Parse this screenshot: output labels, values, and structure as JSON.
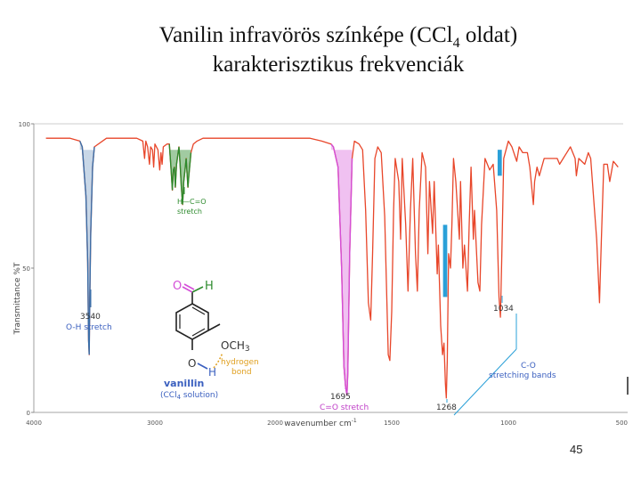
{
  "slide": {
    "title_line1_pre": "Vanilin infravörös színképe (CCl",
    "title_line1_sub": "4",
    "title_line1_post": " oldat)",
    "title_line2": "karakterisztikus frekvenciák",
    "page_number": "45"
  },
  "colors": {
    "spectrum": "#e8462a",
    "oh_band": "#3a6ea8",
    "ch_band": "#2e8b2e",
    "co_band": "#d44ed8",
    "c_o_band": "#2aa0d8",
    "hbond": "#e0a020",
    "label_blue": "#3a5fbf",
    "axis": "#888888"
  },
  "chart_data": {
    "type": "line",
    "xlabel": "wavenumber cm",
    "xlabel_sup": "-1",
    "ylabel": "Transmittance %T",
    "xlim": [
      4000,
      500
    ],
    "ylim": [
      0,
      100
    ],
    "x_ticks": [
      "4000",
      "3000",
      "2000",
      "1500",
      "1000",
      "500"
    ],
    "y_ticks": [
      "100",
      "50",
      "0"
    ],
    "annotations": {
      "oh": {
        "value": "3540",
        "label": "O-H stretch"
      },
      "ch": {
        "label": "H—C=O",
        "label2": "stretch"
      },
      "co": {
        "value": "1695",
        "label": "C=O stretch"
      },
      "c1268": {
        "value": "1268"
      },
      "c1034": {
        "value": "1034"
      },
      "c_o": {
        "label": "C-O",
        "label2": "stretching bands"
      },
      "molecule": {
        "aldehyde_o": "O",
        "aldehyde_h": "H",
        "och3": "OCH",
        "och3_sub": "3",
        "oh_o": "O",
        "oh_h": "H",
        "hbond_label": "hydrogen",
        "hbond_label2": "bond",
        "name": "vanillin",
        "solvent": "(CCl",
        "solvent_sub": "4",
        "solvent_post": " solution)"
      }
    },
    "series": [
      {
        "points": [
          [
            3900,
            95
          ],
          [
            3800,
            95
          ],
          [
            3700,
            95
          ],
          [
            3620,
            94
          ],
          [
            3600,
            92
          ],
          [
            3570,
            75
          ],
          [
            3555,
            52
          ],
          [
            3548,
            25
          ],
          [
            3543,
            20
          ],
          [
            3538,
            38
          ],
          [
            3530,
            62
          ],
          [
            3515,
            85
          ],
          [
            3500,
            92
          ],
          [
            3400,
            95
          ],
          [
            3300,
            95
          ],
          [
            3200,
            95
          ],
          [
            3150,
            95
          ],
          [
            3100,
            94
          ],
          [
            3085,
            88
          ],
          [
            3075,
            94
          ],
          [
            3060,
            92
          ],
          [
            3045,
            86
          ],
          [
            3035,
            92
          ],
          [
            3020,
            91
          ],
          [
            3010,
            85
          ],
          [
            3000,
            93
          ],
          [
            2975,
            91
          ],
          [
            2960,
            84
          ],
          [
            2950,
            90
          ],
          [
            2940,
            86
          ],
          [
            2930,
            92
          ],
          [
            2900,
            93
          ],
          [
            2880,
            93
          ],
          [
            2865,
            84
          ],
          [
            2855,
            77
          ],
          [
            2847,
            84
          ],
          [
            2838,
            85
          ],
          [
            2830,
            78
          ],
          [
            2820,
            86
          ],
          [
            2800,
            92
          ],
          [
            2790,
            86
          ],
          [
            2780,
            78
          ],
          [
            2770,
            72
          ],
          [
            2760,
            80
          ],
          [
            2750,
            84
          ],
          [
            2740,
            88
          ],
          [
            2725,
            78
          ],
          [
            2718,
            82
          ],
          [
            2700,
            90
          ],
          [
            2680,
            93
          ],
          [
            2650,
            94
          ],
          [
            2600,
            95
          ],
          [
            2500,
            95
          ],
          [
            2400,
            95
          ],
          [
            2300,
            95
          ],
          [
            2200,
            95
          ],
          [
            2100,
            95
          ],
          [
            2000,
            95
          ],
          [
            1900,
            95
          ],
          [
            1850,
            95
          ],
          [
            1800,
            94
          ],
          [
            1760,
            93
          ],
          [
            1750,
            92
          ],
          [
            1730,
            85
          ],
          [
            1715,
            50
          ],
          [
            1705,
            16
          ],
          [
            1698,
            9
          ],
          [
            1692,
            6
          ],
          [
            1688,
            14
          ],
          [
            1680,
            55
          ],
          [
            1670,
            88
          ],
          [
            1660,
            94
          ],
          [
            1640,
            93
          ],
          [
            1625,
            91
          ],
          [
            1612,
            70
          ],
          [
            1600,
            38
          ],
          [
            1590,
            32
          ],
          [
            1582,
            55
          ],
          [
            1572,
            88
          ],
          [
            1560,
            92
          ],
          [
            1545,
            90
          ],
          [
            1530,
            68
          ],
          [
            1515,
            20
          ],
          [
            1508,
            18
          ],
          [
            1500,
            35
          ],
          [
            1492,
            70
          ],
          [
            1485,
            88
          ],
          [
            1470,
            80
          ],
          [
            1462,
            60
          ],
          [
            1455,
            88
          ],
          [
            1440,
            65
          ],
          [
            1430,
            42
          ],
          [
            1420,
            70
          ],
          [
            1410,
            88
          ],
          [
            1398,
            55
          ],
          [
            1390,
            42
          ],
          [
            1382,
            70
          ],
          [
            1370,
            90
          ],
          [
            1355,
            85
          ],
          [
            1345,
            55
          ],
          [
            1338,
            80
          ],
          [
            1325,
            62
          ],
          [
            1318,
            80
          ],
          [
            1305,
            48
          ],
          [
            1300,
            58
          ],
          [
            1290,
            30
          ],
          [
            1282,
            20
          ],
          [
            1276,
            24
          ],
          [
            1270,
            10
          ],
          [
            1266,
            5
          ],
          [
            1262,
            18
          ],
          [
            1256,
            55
          ],
          [
            1248,
            50
          ],
          [
            1242,
            65
          ],
          [
            1235,
            88
          ],
          [
            1225,
            80
          ],
          [
            1210,
            60
          ],
          [
            1205,
            80
          ],
          [
            1195,
            50
          ],
          [
            1188,
            58
          ],
          [
            1175,
            42
          ],
          [
            1168,
            65
          ],
          [
            1160,
            85
          ],
          [
            1150,
            60
          ],
          [
            1145,
            70
          ],
          [
            1130,
            45
          ],
          [
            1122,
            42
          ],
          [
            1115,
            65
          ],
          [
            1100,
            88
          ],
          [
            1080,
            84
          ],
          [
            1065,
            86
          ],
          [
            1050,
            70
          ],
          [
            1040,
            40
          ],
          [
            1034,
            33
          ],
          [
            1028,
            55
          ],
          [
            1020,
            88
          ],
          [
            1000,
            94
          ],
          [
            985,
            92
          ],
          [
            965,
            87
          ],
          [
            955,
            92
          ],
          [
            940,
            90
          ],
          [
            920,
            90
          ],
          [
            910,
            85
          ],
          [
            895,
            72
          ],
          [
            890,
            80
          ],
          [
            880,
            85
          ],
          [
            870,
            82
          ],
          [
            860,
            85
          ],
          [
            850,
            88
          ],
          [
            820,
            88
          ],
          [
            795,
            88
          ],
          [
            785,
            86
          ],
          [
            770,
            88
          ],
          [
            740,
            92
          ],
          [
            720,
            88
          ],
          [
            715,
            82
          ],
          [
            705,
            88
          ],
          [
            680,
            86
          ],
          [
            665,
            90
          ],
          [
            655,
            88
          ],
          [
            630,
            60
          ],
          [
            618,
            38
          ],
          [
            610,
            60
          ],
          [
            600,
            86
          ],
          [
            585,
            86
          ],
          [
            575,
            80
          ],
          [
            560,
            87
          ],
          [
            540,
            85
          ]
        ]
      }
    ]
  }
}
